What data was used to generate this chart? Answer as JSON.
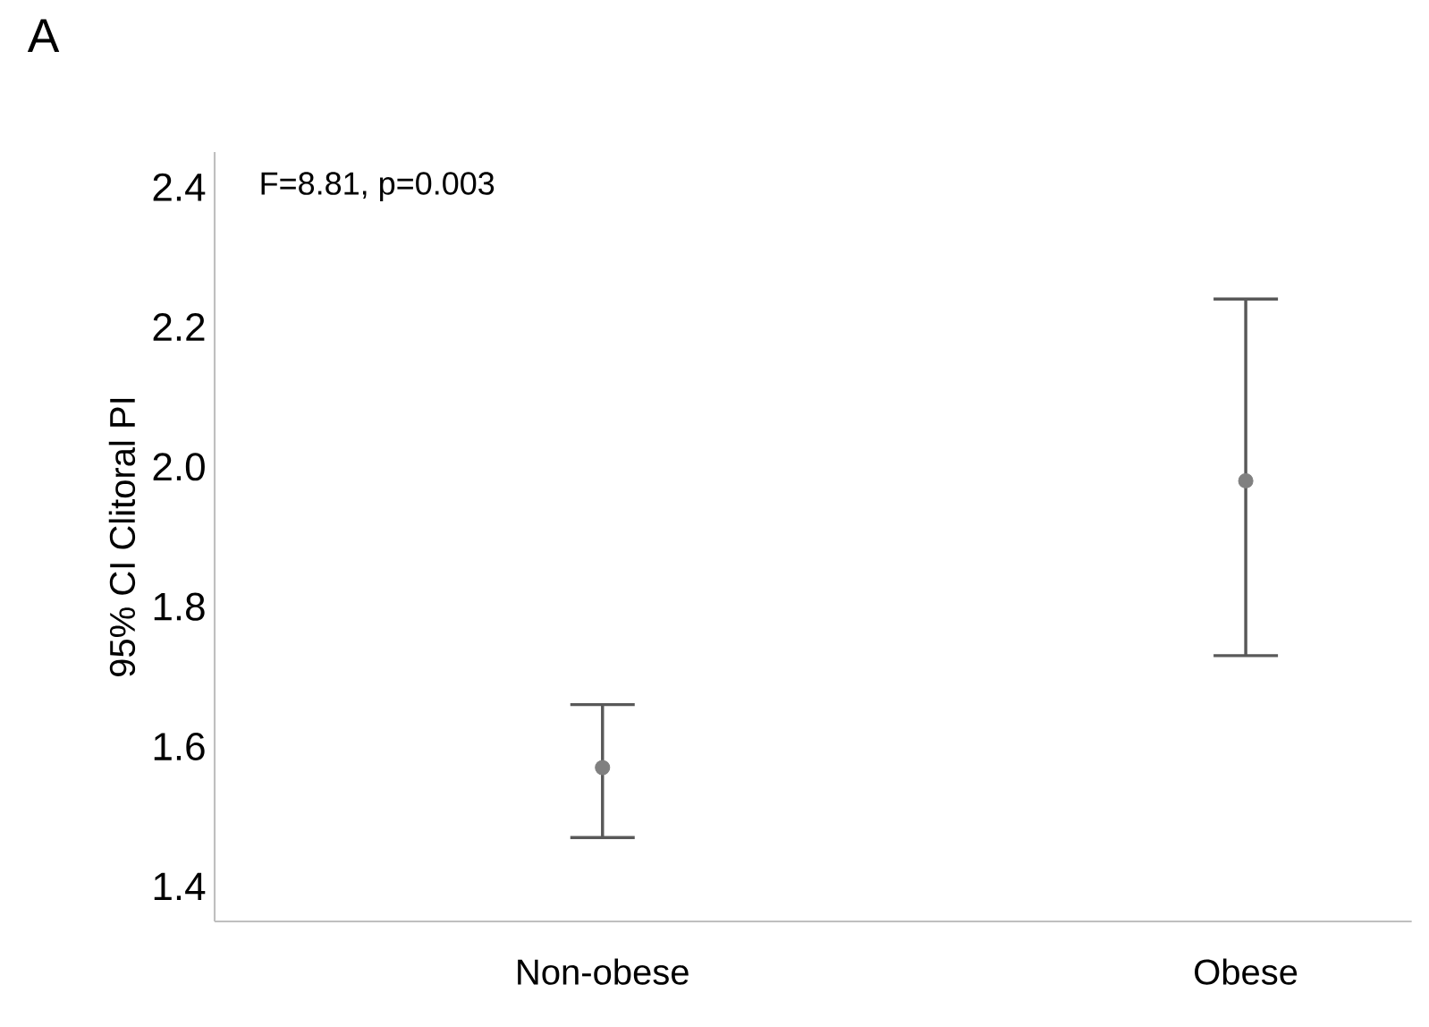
{
  "chart_data": {
    "type": "scatter",
    "ylabel": "95% CI Clitoral PI",
    "categories": [
      "Non-obese",
      "Obese"
    ],
    "series": [
      {
        "color": "#808080",
        "values": [
          1.57,
          1.98
        ],
        "errors": [
          [
            1.47,
            1.66
          ],
          [
            1.73,
            2.24
          ]
        ]
      }
    ],
    "ylim": [
      1.35,
      2.45
    ],
    "yticks": [
      1.4,
      1.6,
      1.8,
      {
        "value": 2.0,
        "label": "2.0"
      },
      2.2,
      2.4
    ],
    "marker": "circle",
    "grid": false,
    "annotations": [
      "A",
      "F=8.81, p=0.003"
    ]
  }
}
